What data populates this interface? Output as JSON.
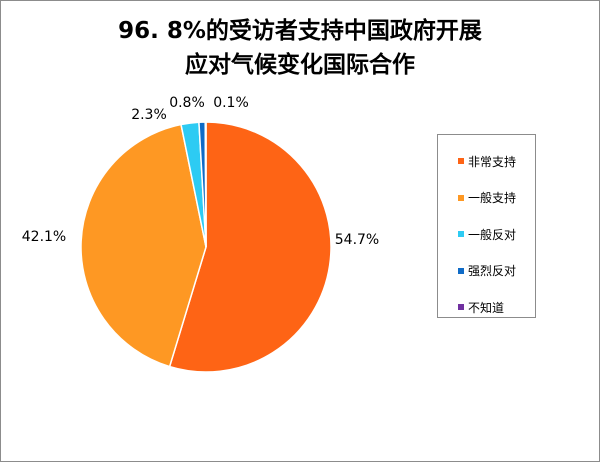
{
  "chart_data": {
    "type": "pie",
    "title": [
      "96. 8%的受访者支持中国政府开展",
      "应对气候变化国际合作"
    ],
    "categories": [
      "非常支持",
      "一般支持",
      "一般反对",
      "强烈反对",
      "不知道"
    ],
    "values": [
      54.7,
      42.1,
      2.3,
      0.8,
      0.1
    ],
    "labels": [
      "54.7%",
      "42.1%",
      "2.3%",
      "0.8%",
      "0.1%"
    ],
    "colors": [
      "#FE6415",
      "#FE9823",
      "#2DCBF3",
      "#0F6BC7",
      "#7030A0"
    ],
    "legend_position": "right"
  }
}
